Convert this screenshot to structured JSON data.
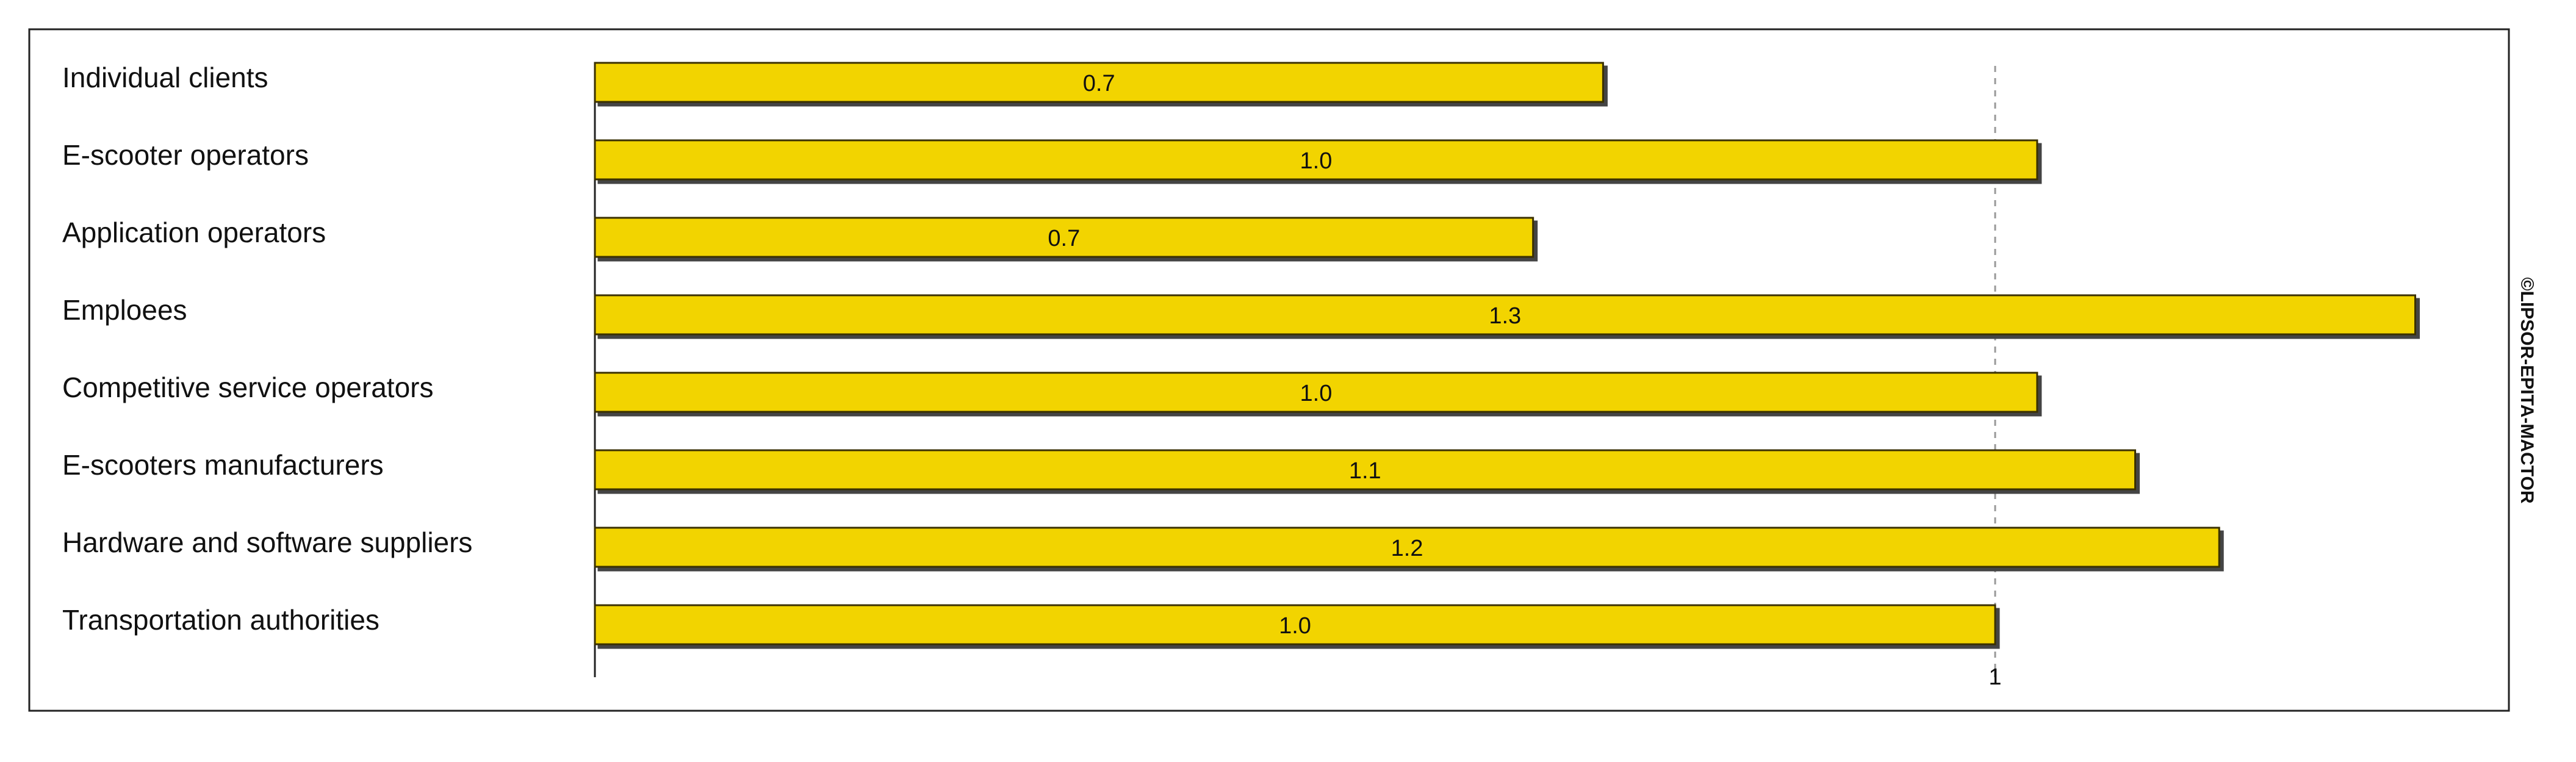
{
  "chart_data": {
    "type": "bar",
    "orientation": "horizontal",
    "categories": [
      "Individual clients",
      "E-scooter operators",
      "Application operators",
      "Emploees",
      "Competitive service operators",
      "E-scooters manufacturers",
      "Hardware and software suppliers",
      "Transportation authorities"
    ],
    "values": [
      0.72,
      1.03,
      0.67,
      1.3,
      1.03,
      1.1,
      1.16,
      1.0
    ],
    "value_labels": [
      "0.7",
      "1.0",
      "0.7",
      "1.3",
      "1.0",
      "1.1",
      "1.2",
      "1.0"
    ],
    "color": "#f2d400",
    "xlim": [
      0,
      1.35
    ],
    "xticks": [
      1
    ],
    "grid": true,
    "annotation": "©LIPSOR-EPITA-MACTOR"
  }
}
